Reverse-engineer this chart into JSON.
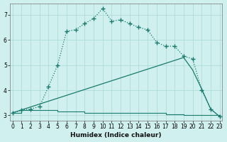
{
  "xlabel": "Humidex (Indice chaleur)",
  "bg_color": "#cff0ee",
  "grid_color": "#aad8d5",
  "line_color": "#1a7a6e",
  "xlim_min": -0.3,
  "xlim_max": 23.3,
  "ylim_min": 2.78,
  "ylim_max": 7.45,
  "yticks": [
    3,
    4,
    5,
    6,
    7
  ],
  "xticks": [
    0,
    1,
    2,
    3,
    4,
    5,
    6,
    7,
    8,
    9,
    10,
    11,
    12,
    13,
    14,
    15,
    16,
    17,
    18,
    19,
    20,
    21,
    22,
    23
  ],
  "step_x": [
    0,
    1,
    2,
    3,
    4,
    5,
    6,
    7,
    8,
    9,
    10,
    11,
    12,
    13,
    14,
    15,
    16,
    17,
    18,
    19,
    20,
    21,
    22,
    23
  ],
  "step_y": [
    3.1,
    3.2,
    3.2,
    3.2,
    3.2,
    3.15,
    3.15,
    3.15,
    3.1,
    3.1,
    3.1,
    3.1,
    3.1,
    3.1,
    3.1,
    3.1,
    3.1,
    3.05,
    3.05,
    3.0,
    3.0,
    3.0,
    3.0,
    2.95
  ],
  "diag_x": [
    0,
    19,
    20,
    21,
    22,
    23
  ],
  "diag_y": [
    3.1,
    5.3,
    4.8,
    4.05,
    3.25,
    2.95
  ],
  "curve_x": [
    0,
    1,
    2,
    3,
    4,
    5,
    6,
    7,
    8,
    9,
    10,
    11,
    12,
    13,
    14,
    15,
    16,
    17,
    18,
    19,
    20,
    21,
    22,
    23
  ],
  "curve_y": [
    3.1,
    3.2,
    3.25,
    3.35,
    4.15,
    5.0,
    6.35,
    6.4,
    6.65,
    6.85,
    7.25,
    6.75,
    6.8,
    6.65,
    6.5,
    6.4,
    5.9,
    5.75,
    5.75,
    5.35,
    5.25,
    4.0,
    3.25,
    2.95
  ]
}
